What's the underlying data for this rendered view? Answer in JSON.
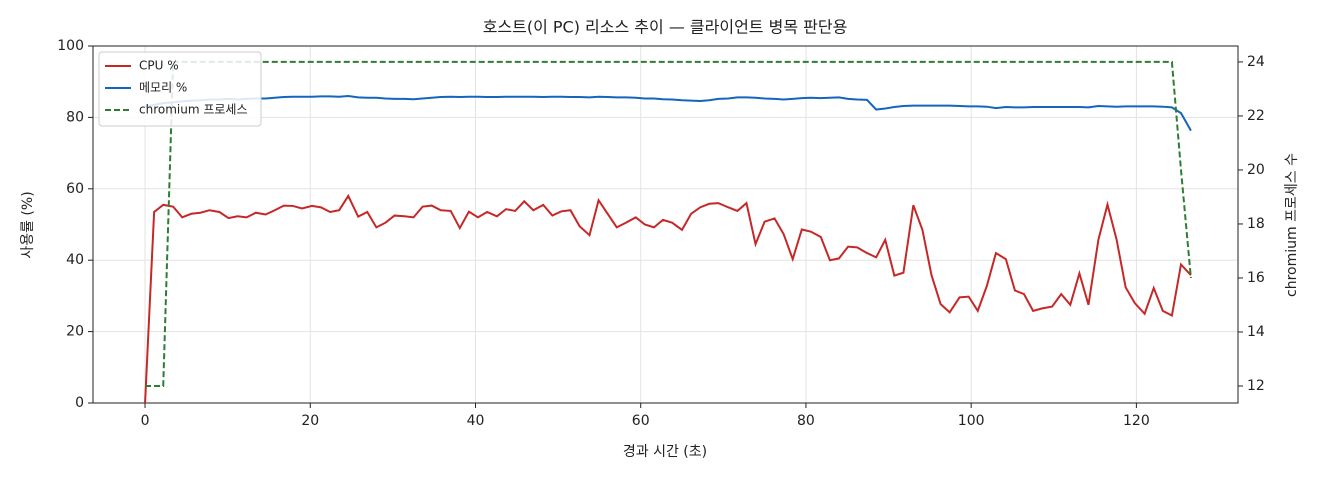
{
  "chart_data": {
    "type": "line",
    "title": "호스트(이 PC) 리소스 추이 — 클라이언트 병목 판단용",
    "x_label": "경과 시간 (초)",
    "y_label": "사용률 (%)",
    "y2_label": "chromium 프로세스 수",
    "xlim": [
      -6.3,
      132.3
    ],
    "xticks": [
      0,
      20,
      40,
      60,
      80,
      100,
      120
    ],
    "ylim": [
      0,
      100
    ],
    "yticks": [
      0,
      20,
      40,
      60,
      80,
      100
    ],
    "y2lim": [
      11.37,
      24.59
    ],
    "y2ticks": [
      12,
      14,
      16,
      18,
      20,
      22,
      24
    ],
    "grid": true,
    "legend": "upper left",
    "x": [
      0,
      1.1,
      2.2,
      3.4,
      4.5,
      5.6,
      6.7,
      7.8,
      9.0,
      10.1,
      11.2,
      12.3,
      13.4,
      14.6,
      15.7,
      16.8,
      17.9,
      19.0,
      20.2,
      21.3,
      22.4,
      23.5,
      24.6,
      25.8,
      26.9,
      28.0,
      29.1,
      30.2,
      31.4,
      32.5,
      33.6,
      34.7,
      35.8,
      37.0,
      38.1,
      39.2,
      40.3,
      41.4,
      42.6,
      43.7,
      44.8,
      45.9,
      47.0,
      48.2,
      49.3,
      50.4,
      51.5,
      52.6,
      53.8,
      54.9,
      56.0,
      57.1,
      58.2,
      59.4,
      60.5,
      61.6,
      62.7,
      63.8,
      65.0,
      66.1,
      67.2,
      68.3,
      69.4,
      70.6,
      71.7,
      72.8,
      73.9,
      75.0,
      76.2,
      77.3,
      78.4,
      79.5,
      80.6,
      81.8,
      82.9,
      84.0,
      85.1,
      86.2,
      87.4,
      88.5,
      89.6,
      90.7,
      91.8,
      93.0,
      94.1,
      95.2,
      96.3,
      97.4,
      98.6,
      99.7,
      100.8,
      101.9,
      103.0,
      104.2,
      105.3,
      106.4,
      107.5,
      108.6,
      109.8,
      110.9,
      112.0,
      113.1,
      114.2,
      115.4,
      116.5,
      117.6,
      118.7,
      119.8,
      121.0,
      122.1,
      123.2,
      124.3,
      125.4,
      126.6
    ],
    "series": [
      {
        "name": "CPU %",
        "color": "#c62828",
        "dash": false,
        "values": [
          0,
          53.5,
          55.5,
          55,
          52,
          53,
          53.3,
          54,
          53.5,
          51.8,
          52.3,
          52,
          53.3,
          52.8,
          54,
          55.3,
          55.2,
          54.5,
          55.2,
          54.8,
          53.5,
          54,
          58,
          52.2,
          53.5,
          49.2,
          50.5,
          52.5,
          52.3,
          52,
          55,
          55.3,
          54,
          53.8,
          49,
          53.6,
          52,
          53.5,
          52.3,
          54.3,
          53.8,
          56.5,
          54,
          55.5,
          52.5,
          53.7,
          54,
          49.5,
          47,
          56.8,
          53,
          49.2,
          50.5,
          52,
          50,
          49.2,
          51.3,
          50.5,
          48.5,
          53,
          54.8,
          55.8,
          56,
          54.8,
          53.8,
          56,
          44.5,
          50.8,
          51.7,
          47.3,
          40.3,
          48.6,
          48,
          46.5,
          40,
          40.5,
          43.8,
          43.6,
          42,
          40.8,
          45.7,
          35.7,
          36.5,
          55.4,
          48.5,
          35.8,
          27.7,
          25.4,
          29.6,
          29.8,
          25.8,
          32.8,
          42,
          40.3,
          31.5,
          30.5,
          25.8,
          26.5,
          27,
          30.5,
          27.5,
          36.3,
          27.5,
          45.7,
          55.6,
          45.8,
          32.4,
          28,
          25,
          32.2,
          25.8,
          24.5,
          38.8,
          35.8
        ]
      },
      {
        "name": "메모리 %",
        "color": "#1565c0",
        "dash": false,
        "values": [
          83,
          83.5,
          84,
          84.2,
          84.5,
          84.7,
          84.8,
          85,
          85,
          85.2,
          85,
          85.2,
          85.3,
          85.3,
          85.5,
          85.7,
          85.8,
          85.8,
          85.8,
          85.9,
          85.9,
          85.8,
          86,
          85.6,
          85.5,
          85.5,
          85.3,
          85.2,
          85.2,
          85.1,
          85.3,
          85.5,
          85.7,
          85.8,
          85.7,
          85.8,
          85.8,
          85.7,
          85.7,
          85.8,
          85.8,
          85.8,
          85.8,
          85.7,
          85.8,
          85.8,
          85.7,
          85.7,
          85.6,
          85.8,
          85.7,
          85.6,
          85.6,
          85.5,
          85.3,
          85.3,
          85.1,
          85,
          84.8,
          84.7,
          84.6,
          84.8,
          85.2,
          85.3,
          85.6,
          85.6,
          85.5,
          85.3,
          85.2,
          85,
          85.2,
          85.4,
          85.5,
          85.4,
          85.5,
          85.6,
          85.2,
          85,
          84.9,
          82.2,
          82.5,
          82.9,
          83.2,
          83.3,
          83.3,
          83.3,
          83.3,
          83.3,
          83.2,
          83.1,
          83.1,
          83,
          82.6,
          82.9,
          82.8,
          82.8,
          82.9,
          82.9,
          82.9,
          82.9,
          82.9,
          82.9,
          82.8,
          83.2,
          83.1,
          83,
          83.1,
          83.1,
          83.1,
          83.1,
          83,
          82.8,
          81.2,
          76.3
        ]
      },
      {
        "name": "chromium 프로세스",
        "color": "#2e7d32",
        "dash": true,
        "axis": "y2",
        "values": [
          12,
          12,
          12,
          24,
          24,
          24,
          24,
          24,
          24,
          24,
          24,
          24,
          24,
          24,
          24,
          24,
          24,
          24,
          24,
          24,
          24,
          24,
          24,
          24,
          24,
          24,
          24,
          24,
          24,
          24,
          24,
          24,
          24,
          24,
          24,
          24,
          24,
          24,
          24,
          24,
          24,
          24,
          24,
          24,
          24,
          24,
          24,
          24,
          24,
          24,
          24,
          24,
          24,
          24,
          24,
          24,
          24,
          24,
          24,
          24,
          24,
          24,
          24,
          24,
          24,
          24,
          24,
          24,
          24,
          24,
          24,
          24,
          24,
          24,
          24,
          24,
          24,
          24,
          24,
          24,
          24,
          24,
          24,
          24,
          24,
          24,
          24,
          24,
          24,
          24,
          24,
          24,
          24,
          24,
          24,
          24,
          24,
          24,
          24,
          24,
          24,
          24,
          24,
          24,
          24,
          24,
          24,
          24,
          24,
          24,
          24,
          24,
          20,
          16
        ]
      }
    ]
  }
}
